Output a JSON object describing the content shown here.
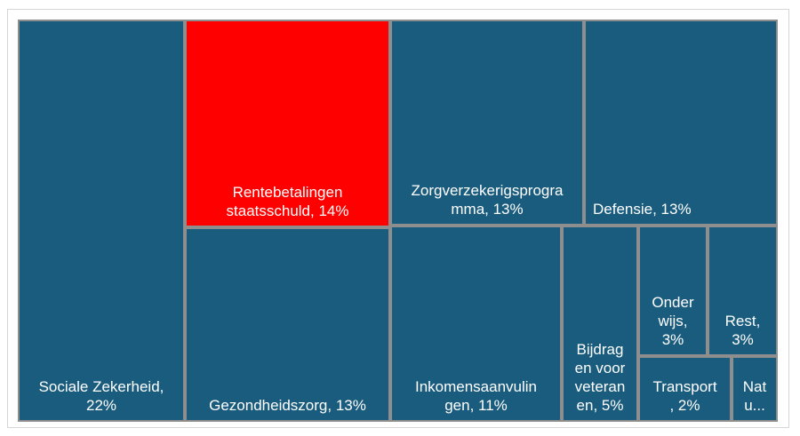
{
  "chart_data": {
    "type": "treemap",
    "colors": {
      "default": "#1a5c7e",
      "highlight": "#ff0000",
      "border": "#8e8e8e"
    },
    "items": [
      {
        "name": "Sociale Zekerheid",
        "value": 22,
        "lines": [
          "Sociale Zekerheid,",
          "22%"
        ],
        "highlight": false
      },
      {
        "name": "Rentebetalingen staatsschuld",
        "value": 14,
        "lines": [
          "Rentebetalingen",
          "staatsschuld, 14%"
        ],
        "highlight": true
      },
      {
        "name": "Gezondheidszorg",
        "value": 13,
        "lines": [
          "Gezondheidszorg, 13%"
        ],
        "highlight": false
      },
      {
        "name": "Zorgverzekerigsprogramma",
        "value": 13,
        "lines": [
          "Zorgverzekerigsprogra",
          "mma, 13%"
        ],
        "highlight": false
      },
      {
        "name": "Defensie",
        "value": 13,
        "lines": [
          "Defensie, 13%"
        ],
        "highlight": false
      },
      {
        "name": "Inkomensaanvulingen",
        "value": 11,
        "lines": [
          "Inkomensaanvulin",
          "gen, 11%"
        ],
        "highlight": false
      },
      {
        "name": "Bijdragen voor veteranen",
        "value": 5,
        "lines": [
          "Bijdrag",
          "en voor",
          "veteran",
          "en, 5%"
        ],
        "highlight": false
      },
      {
        "name": "Onderwijs",
        "value": 3,
        "lines": [
          "Onder",
          "wijs,",
          "3%"
        ],
        "highlight": false
      },
      {
        "name": "Rest",
        "value": 3,
        "lines": [
          "Rest,",
          "3%"
        ],
        "highlight": false
      },
      {
        "name": "Transport",
        "value": 2,
        "lines": [
          "Transport",
          ", 2%"
        ],
        "highlight": false
      },
      {
        "name": "Nat",
        "value": 1,
        "lines": [
          "Nat",
          "u..."
        ],
        "highlight": false
      }
    ]
  }
}
